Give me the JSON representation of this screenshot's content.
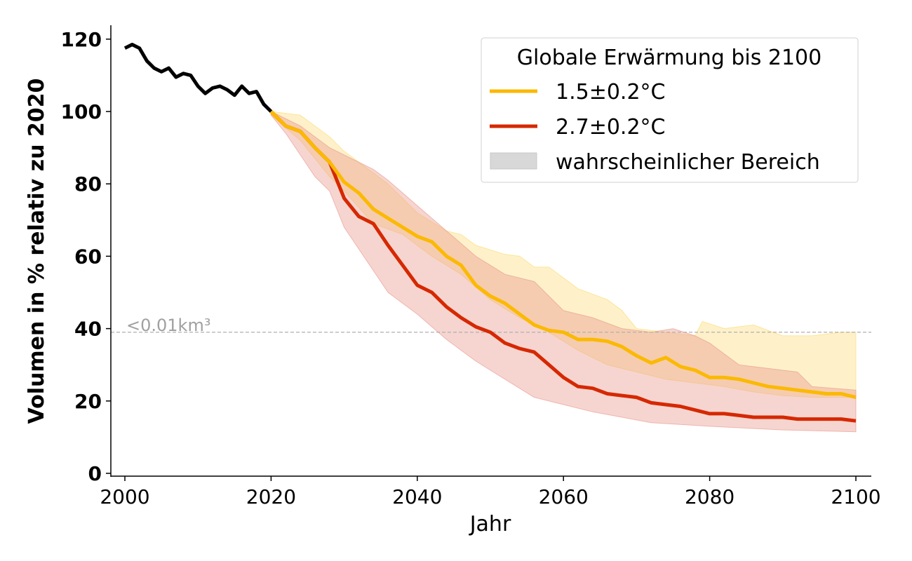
{
  "chart_data": {
    "type": "line",
    "title": "",
    "xlabel": "Jahr",
    "ylabel": "Volumen in % relativ zu 2020",
    "xlim": [
      1998,
      2102
    ],
    "ylim": [
      -1,
      124
    ],
    "xticks": [
      2000,
      2020,
      2040,
      2060,
      2080,
      2100
    ],
    "yticks": [
      0,
      20,
      40,
      60,
      80,
      100,
      120
    ],
    "grid": false,
    "legend": {
      "title": "Globale Erwärmung bis 2100",
      "placement": "top-right",
      "entries": [
        "1.5±0.2°C",
        "2.7±0.2°C",
        "wahrscheinlicher Bereich"
      ]
    },
    "reference_line": {
      "y": 39,
      "label": "<0.01km³",
      "color": "#b0b0b0",
      "style": "dashed"
    },
    "historical": {
      "color": "#000000",
      "x": [
        2000,
        2001,
        2002,
        2003,
        2004,
        2005,
        2006,
        2007,
        2008,
        2009,
        2010,
        2011,
        2012,
        2013,
        2014,
        2015,
        2016,
        2017,
        2018,
        2019,
        2020
      ],
      "y": [
        117.5,
        118.5,
        117.5,
        114,
        112,
        111,
        112,
        109.5,
        110.5,
        110,
        107,
        105,
        106.5,
        107,
        106,
        104.5,
        107,
        105,
        105.5,
        102,
        100
      ]
    },
    "series": [
      {
        "name": "1.5±0.2°C",
        "color": "#fbb900",
        "band_color": "#fdd866",
        "x": [
          2020,
          2022,
          2024,
          2026,
          2028,
          2030,
          2032,
          2034,
          2036,
          2038,
          2040,
          2042,
          2044,
          2046,
          2048,
          2050,
          2052,
          2054,
          2056,
          2058,
          2060,
          2062,
          2064,
          2066,
          2068,
          2070,
          2072,
          2074,
          2076,
          2078,
          2080,
          2082,
          2084,
          2086,
          2088,
          2090,
          2092,
          2094,
          2096,
          2098,
          2100
        ],
        "y": [
          100,
          96,
          94.5,
          90,
          86,
          80.5,
          77.5,
          73,
          70.5,
          68,
          65.5,
          64,
          60,
          57.5,
          52,
          49,
          47,
          44,
          41,
          39.5,
          39,
          37,
          37,
          36.5,
          35,
          32.5,
          30.5,
          32,
          29.5,
          28.5,
          26.5,
          26.5,
          26,
          25,
          24,
          23.5,
          23,
          22.5,
          22,
          22,
          21
        ],
        "band_upper": {
          "x": [
            2020,
            2024,
            2028,
            2030,
            2034,
            2036,
            2040,
            2044,
            2046,
            2048,
            2052,
            2054,
            2056,
            2058,
            2062,
            2066,
            2068,
            2070,
            2074,
            2078,
            2079,
            2082,
            2086,
            2090,
            2094,
            2098,
            2100
          ],
          "y": [
            100,
            99,
            93,
            89,
            83,
            80,
            72,
            67,
            66,
            63,
            60.5,
            60,
            57,
            57,
            51,
            48,
            45,
            40,
            39,
            38,
            42,
            40,
            41,
            38,
            38,
            39,
            39
          ]
        },
        "band_lower": {
          "x": [
            2020,
            2024,
            2028,
            2030,
            2034,
            2038,
            2042,
            2046,
            2050,
            2054,
            2058,
            2062,
            2066,
            2070,
            2074,
            2078,
            2082,
            2086,
            2090,
            2094,
            2100
          ],
          "y": [
            99,
            92,
            82,
            78,
            69,
            66,
            60,
            55,
            48,
            43,
            39,
            34,
            30,
            28,
            26,
            25,
            24,
            22.5,
            21.5,
            21,
            21
          ]
        }
      },
      {
        "name": "2.7±0.2°C",
        "color": "#d62800",
        "band_color": "#e8958a",
        "x": [
          2020,
          2022,
          2024,
          2026,
          2028,
          2030,
          2032,
          2034,
          2036,
          2038,
          2040,
          2042,
          2044,
          2046,
          2048,
          2050,
          2052,
          2054,
          2056,
          2058,
          2060,
          2062,
          2064,
          2066,
          2068,
          2070,
          2072,
          2074,
          2076,
          2078,
          2080,
          2082,
          2084,
          2086,
          2088,
          2090,
          2092,
          2094,
          2096,
          2098,
          2100
        ],
        "y": [
          100,
          96,
          94.5,
          90,
          86,
          76,
          71,
          69,
          63,
          57.5,
          52,
          50,
          46,
          43,
          40.5,
          39,
          36,
          34.5,
          33.5,
          30,
          26.5,
          24,
          23.5,
          22,
          21.5,
          21,
          19.5,
          19,
          18.5,
          17.5,
          16.5,
          16.5,
          16,
          15.5,
          15.5,
          15.5,
          15,
          15,
          15,
          15,
          14.5
        ],
        "band_upper": {
          "x": [
            2020,
            2024,
            2028,
            2030,
            2034,
            2036,
            2040,
            2044,
            2048,
            2052,
            2056,
            2060,
            2064,
            2068,
            2072,
            2075,
            2078,
            2080,
            2084,
            2088,
            2092,
            2094,
            2100
          ],
          "y": [
            100,
            96,
            90,
            88,
            84,
            81,
            74,
            67,
            60,
            55,
            53,
            45,
            43,
            40,
            39,
            40,
            38,
            36,
            30,
            29,
            28,
            24,
            23
          ]
        },
        "band_lower": {
          "x": [
            2020,
            2022,
            2024,
            2026,
            2028,
            2030,
            2032,
            2034,
            2036,
            2040,
            2044,
            2048,
            2052,
            2056,
            2060,
            2064,
            2068,
            2072,
            2080,
            2090,
            2100
          ],
          "y": [
            99,
            94,
            88,
            82,
            78,
            68,
            62,
            56,
            50,
            44,
            37,
            31,
            26,
            21,
            19,
            17,
            15.5,
            14,
            13,
            12,
            11.5
          ]
        }
      }
    ]
  }
}
